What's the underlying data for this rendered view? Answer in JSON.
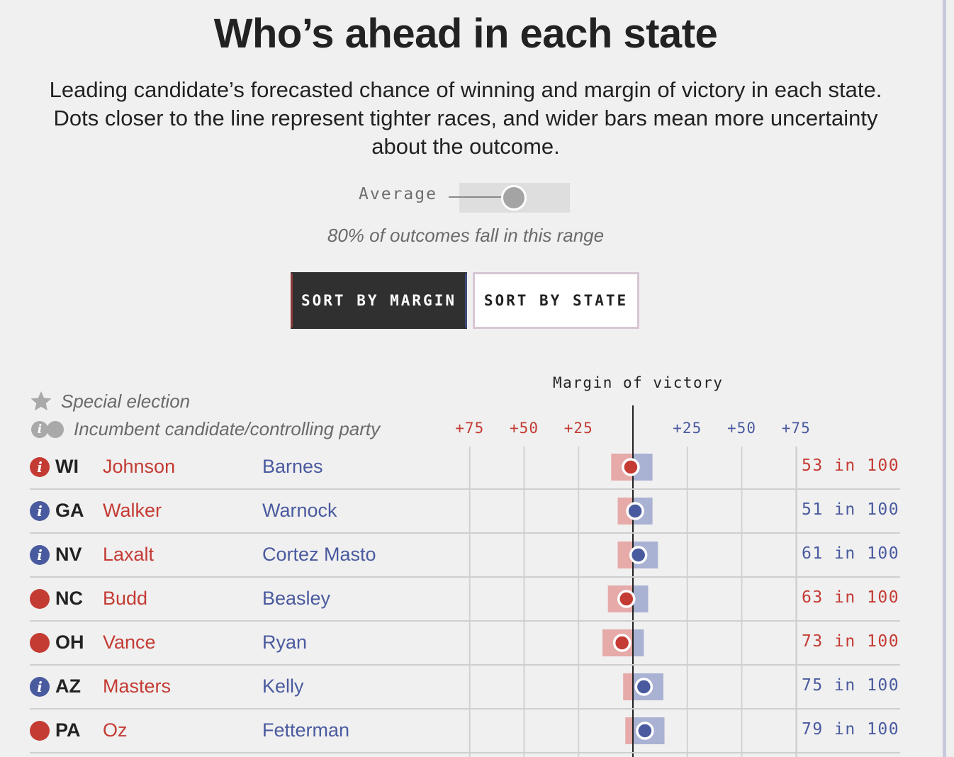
{
  "title": "Who’s ahead in each state",
  "subtitle": "Leading candidate’s forecasted chance of winning and margin of victory in each state. Dots closer to the line represent tighter races, and wider bars mean more uncertainty about the outcome.",
  "toggle": {
    "label": "Average",
    "note": "80% of outcomes fall in this range"
  },
  "buttons": {
    "sort_margin": "SORT BY MARGIN",
    "sort_state": "SORT BY STATE",
    "active": "sort_margin"
  },
  "legend": {
    "special": "Special election",
    "incumbent": "Incumbent candidate/controlling party"
  },
  "icons": {
    "incumbent_marker": "i"
  },
  "colors": {
    "red": "#c43b34",
    "blue": "#4a5a9f",
    "red_bar": "#e6aaa8",
    "blue_bar": "#aab2d3"
  },
  "chart_data": {
    "type": "dot-range",
    "title": "Margin of victory",
    "x_ticks": [
      "+75",
      "+50",
      "+25",
      "+25",
      "+50",
      "+75"
    ],
    "x_tick_values": [
      -75,
      -50,
      -25,
      25,
      50,
      75
    ],
    "xlim": [
      -100,
      100
    ],
    "rows": [
      {
        "state": "WI",
        "rep": "Johnson",
        "dem": "Barnes",
        "marker": "incumbent",
        "marker_party": "R",
        "leader": "R",
        "margin": -1,
        "range": [
          -10,
          9
        ],
        "odds": "53 in 100"
      },
      {
        "state": "GA",
        "rep": "Walker",
        "dem": "Warnock",
        "marker": "incumbent",
        "marker_party": "D",
        "leader": "D",
        "margin": 1,
        "range": [
          -7,
          9
        ],
        "odds": "51 in 100"
      },
      {
        "state": "NV",
        "rep": "Laxalt",
        "dem": "Cortez Masto",
        "marker": "incumbent",
        "marker_party": "D",
        "leader": "D",
        "margin": 2.5,
        "range": [
          -7,
          11.5
        ],
        "odds": "61 in 100"
      },
      {
        "state": "NC",
        "rep": "Budd",
        "dem": "Beasley",
        "marker": "dot",
        "marker_party": "R",
        "leader": "R",
        "margin": -3,
        "range": [
          -11.5,
          7
        ],
        "odds": "63 in 100"
      },
      {
        "state": "OH",
        "rep": "Vance",
        "dem": "Ryan",
        "marker": "dot",
        "marker_party": "R",
        "leader": "R",
        "margin": -5,
        "range": [
          -14,
          5
        ],
        "odds": "73 in 100"
      },
      {
        "state": "AZ",
        "rep": "Masters",
        "dem": "Kelly",
        "marker": "incumbent",
        "marker_party": "D",
        "leader": "D",
        "margin": 5,
        "range": [
          -4.5,
          14
        ],
        "odds": "75 in 100"
      },
      {
        "state": "PA",
        "rep": "Oz",
        "dem": "Fetterman",
        "marker": "dot",
        "marker_party": "R",
        "leader": "D",
        "margin": 5.5,
        "range": [
          -3.5,
          14.5
        ],
        "odds": "79 in 100"
      }
    ]
  }
}
